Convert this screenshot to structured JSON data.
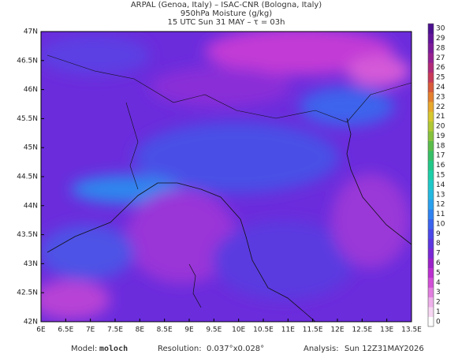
{
  "header": {
    "line1": "ARPAL (Genoa, Italy)  –  ISAC-CNR (Bologna, Italy)",
    "line2": "950hPa Moisture (g/kg)",
    "line3": "15 UTC Sun 31 MAY  –  τ = 03h"
  },
  "map": {
    "lat_labels": [
      "47N",
      "46.5N",
      "46N",
      "45.5N",
      "45N",
      "44.5N",
      "44N",
      "43.5N",
      "43N",
      "42.5N",
      "42N"
    ],
    "lon_labels": [
      "6E",
      "6.5E",
      "7E",
      "7.5E",
      "8E",
      "8.5E",
      "9E",
      "9.5E",
      "10E",
      "10.5E",
      "11E",
      "11.5E",
      "12E",
      "12.5E",
      "13E",
      "13.5E"
    ]
  },
  "colorbar": {
    "labels": [
      "0",
      "1",
      "2",
      "3",
      "4",
      "5",
      "6",
      "7",
      "8",
      "9",
      "10",
      "11",
      "12",
      "13",
      "14",
      "15",
      "16",
      "17",
      "18",
      "19",
      "20",
      "21",
      "22",
      "23",
      "24",
      "25",
      "26",
      "27",
      "28",
      "29",
      "30"
    ],
    "colors": [
      "#ffffff",
      "#f6d6f2",
      "#eeb0ea",
      "#e27ee0",
      "#d14fd6",
      "#bb2fd0",
      "#9b22c9",
      "#7a28d6",
      "#5c36e0",
      "#4a48e8",
      "#3a63ee",
      "#2f82f0",
      "#2aa0ee",
      "#23b8e0",
      "#1fc8c8",
      "#1ccfa8",
      "#22c888",
      "#37c066",
      "#5abd4a",
      "#86c23c",
      "#b0c834",
      "#d6c72e",
      "#e8a82c",
      "#e4802e",
      "#d85a3a",
      "#c83a58",
      "#b02a78",
      "#962090",
      "#7c1a98",
      "#64149a",
      "#4c1090"
    ]
  },
  "footer": {
    "model_label": "Model:",
    "model": "moloch",
    "res_label": "Resolution:",
    "res": "0.037°x0.028°",
    "analysis_label": "Analysis:",
    "analysis": "Sun 12Z31MAY2026"
  }
}
